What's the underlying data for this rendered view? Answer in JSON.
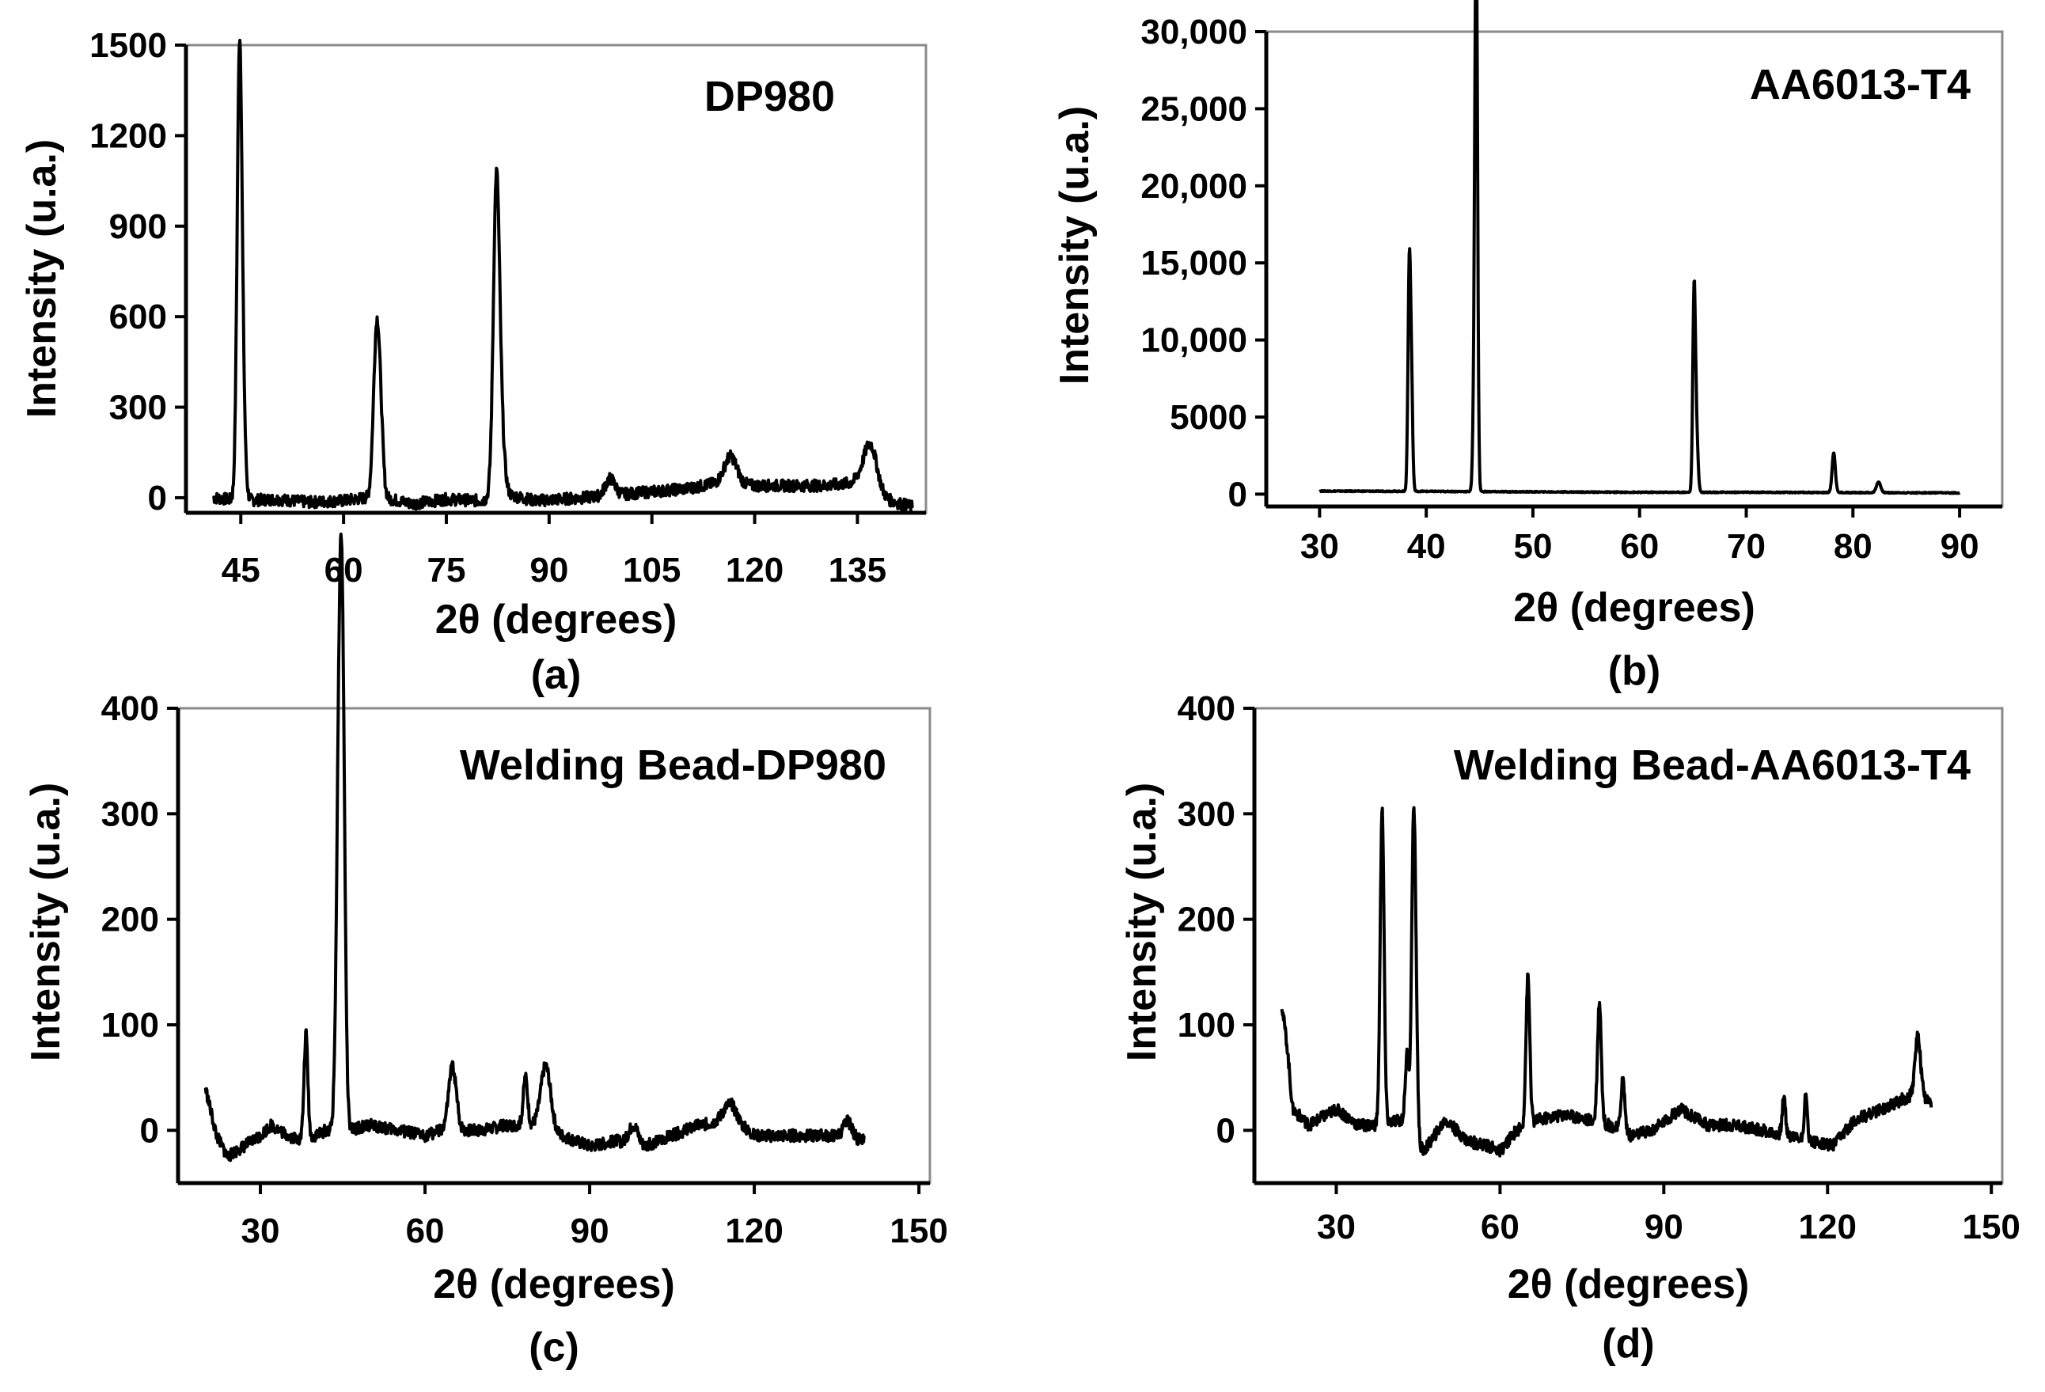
{
  "chart_data": [
    {
      "type": "line",
      "title": "DP980",
      "xlabel": "2θ (degrees)",
      "ylabel": "Intensity (u.a.)",
      "panel_label": "(a)",
      "xlim": [
        37,
        145
      ],
      "ylim": [
        -50,
        1500
      ],
      "xticks": [
        45,
        60,
        75,
        90,
        105,
        120,
        135
      ],
      "xtick_labels": [
        "45",
        "60",
        "75",
        "90",
        "105",
        "120",
        "135"
      ],
      "yticks": [
        0,
        300,
        600,
        900,
        1200,
        1500
      ],
      "ytick_labels": [
        "0",
        "300",
        "600",
        "900",
        "1200",
        "1500"
      ],
      "baseline": [
        [
          41,
          0
        ],
        [
          45,
          -10
        ],
        [
          50,
          -5
        ],
        [
          55,
          -15
        ],
        [
          60,
          -10
        ],
        [
          65,
          5
        ],
        [
          70,
          -20
        ],
        [
          75,
          -5
        ],
        [
          80,
          -10
        ],
        [
          84,
          10
        ],
        [
          88,
          -10
        ],
        [
          95,
          0
        ],
        [
          100,
          10
        ],
        [
          105,
          20
        ],
        [
          110,
          30
        ],
        [
          115,
          50
        ],
        [
          120,
          40
        ],
        [
          125,
          40
        ],
        [
          130,
          40
        ],
        [
          135,
          50
        ],
        [
          138,
          0
        ],
        [
          143,
          -30
        ]
      ],
      "peaks": [
        {
          "x": 44.8,
          "y": 1340,
          "w": 0.35
        },
        {
          "x": 45.2,
          "y": 310,
          "w": 0.4
        },
        {
          "x": 64.8,
          "y": 520,
          "w": 0.45
        },
        {
          "x": 65.4,
          "y": 180,
          "w": 0.4
        },
        {
          "x": 82.3,
          "y": 1010,
          "w": 0.45
        },
        {
          "x": 83.0,
          "y": 180,
          "w": 0.5
        },
        {
          "x": 98.9,
          "y": 55,
          "w": 0.7
        },
        {
          "x": 116.5,
          "y": 90,
          "w": 0.9
        },
        {
          "x": 136.9,
          "y": 160,
          "w": 1.0
        }
      ]
    },
    {
      "type": "line",
      "title": "AA6013-T4",
      "xlabel": "2θ (degrees)",
      "ylabel": "Intensity (u.a.)",
      "panel_label": "(b)",
      "xlim": [
        25,
        94
      ],
      "ylim": [
        -800,
        30000
      ],
      "xticks": [
        30,
        40,
        50,
        60,
        70,
        80,
        90
      ],
      "xtick_labels": [
        "30",
        "40",
        "50",
        "60",
        "70",
        "80",
        "90"
      ],
      "yticks": [
        0,
        5000,
        10000,
        15000,
        20000,
        25000,
        30000
      ],
      "ytick_labels": [
        "0",
        "5000",
        "10,000",
        "15,000",
        "20,000",
        "25,000",
        "30,000"
      ],
      "baseline": [
        [
          30,
          200
        ],
        [
          40,
          180
        ],
        [
          50,
          150
        ],
        [
          60,
          120
        ],
        [
          70,
          120
        ],
        [
          80,
          100
        ],
        [
          90,
          80
        ]
      ],
      "peaks": [
        {
          "x": 38.4,
          "y": 13600,
          "w": 0.12
        },
        {
          "x": 38.6,
          "y": 7000,
          "w": 0.12
        },
        {
          "x": 44.7,
          "y": 25800,
          "w": 0.12
        },
        {
          "x": 44.6,
          "y": 13800,
          "w": 0.15
        },
        {
          "x": 65.1,
          "y": 11800,
          "w": 0.12
        },
        {
          "x": 65.3,
          "y": 4500,
          "w": 0.15
        },
        {
          "x": 78.2,
          "y": 2600,
          "w": 0.15
        },
        {
          "x": 82.4,
          "y": 700,
          "w": 0.2
        }
      ]
    },
    {
      "type": "line",
      "title": "Welding Bead-DP980",
      "xlabel": "2θ (degrees)",
      "ylabel": "Intensity (u.a.)",
      "panel_label": "(c)",
      "xlim": [
        15,
        152
      ],
      "ylim": [
        -50,
        400
      ],
      "xticks": [
        30,
        60,
        90,
        120,
        150
      ],
      "xtick_labels": [
        "30",
        "60",
        "90",
        "120",
        "150"
      ],
      "yticks": [
        0,
        100,
        200,
        300,
        400
      ],
      "ytick_labels": [
        "0",
        "100",
        "200",
        "300",
        "400"
      ],
      "baseline": [
        [
          20,
          40
        ],
        [
          22,
          -5
        ],
        [
          24,
          -25
        ],
        [
          27,
          -15
        ],
        [
          30,
          -5
        ],
        [
          32,
          5
        ],
        [
          35,
          -5
        ],
        [
          38,
          -10
        ],
        [
          42,
          0
        ],
        [
          46,
          0
        ],
        [
          50,
          5
        ],
        [
          55,
          0
        ],
        [
          60,
          -5
        ],
        [
          63,
          0
        ],
        [
          67,
          0
        ],
        [
          70,
          0
        ],
        [
          75,
          5
        ],
        [
          80,
          5
        ],
        [
          85,
          -5
        ],
        [
          90,
          -15
        ],
        [
          95,
          -10
        ],
        [
          100,
          -15
        ],
        [
          105,
          -5
        ],
        [
          110,
          5
        ],
        [
          116,
          10
        ],
        [
          120,
          -5
        ],
        [
          125,
          -5
        ],
        [
          130,
          -5
        ],
        [
          135,
          -5
        ],
        [
          140,
          -10
        ]
      ],
      "peaks": [
        {
          "x": 38.3,
          "y": 100,
          "w": 0.35
        },
        {
          "x": 44.4,
          "y": 370,
          "w": 0.5
        },
        {
          "x": 45.0,
          "y": 320,
          "w": 0.45
        },
        {
          "x": 65.0,
          "y": 60,
          "w": 0.7
        },
        {
          "x": 78.3,
          "y": 45,
          "w": 0.4
        },
        {
          "x": 82.0,
          "y": 60,
          "w": 0.9
        },
        {
          "x": 98.0,
          "y": 18,
          "w": 0.8
        },
        {
          "x": 115.5,
          "y": 15,
          "w": 1.2
        },
        {
          "x": 137.0,
          "y": 15,
          "w": 0.8
        }
      ]
    },
    {
      "type": "line",
      "title": "Welding Bead-AA6013-T4",
      "xlabel": "2θ (degrees)",
      "ylabel": "Intensity (u.a.)",
      "panel_label": "(d)",
      "xlim": [
        15,
        152
      ],
      "ylim": [
        -50,
        400
      ],
      "xticks": [
        30,
        60,
        90,
        120,
        150
      ],
      "xtick_labels": [
        "30",
        "60",
        "90",
        "120",
        "150"
      ],
      "yticks": [
        0,
        100,
        200,
        300,
        400
      ],
      "ytick_labels": [
        "0",
        "100",
        "200",
        "300",
        "400"
      ],
      "baseline": [
        [
          20,
          120
        ],
        [
          21,
          80
        ],
        [
          22,
          20
        ],
        [
          25,
          5
        ],
        [
          30,
          20
        ],
        [
          34,
          5
        ],
        [
          37,
          5
        ],
        [
          42,
          10
        ],
        [
          46,
          -20
        ],
        [
          50,
          10
        ],
        [
          54,
          -10
        ],
        [
          58,
          -15
        ],
        [
          60,
          -20
        ],
        [
          63,
          0
        ],
        [
          67,
          10
        ],
        [
          72,
          15
        ],
        [
          76,
          10
        ],
        [
          80,
          5
        ],
        [
          84,
          -5
        ],
        [
          88,
          0
        ],
        [
          93,
          20
        ],
        [
          98,
          5
        ],
        [
          103,
          5
        ],
        [
          108,
          0
        ],
        [
          113,
          -5
        ],
        [
          117,
          -10
        ],
        [
          121,
          -15
        ],
        [
          125,
          10
        ],
        [
          130,
          20
        ],
        [
          134,
          30
        ],
        [
          137,
          35
        ],
        [
          139,
          25
        ]
      ],
      "peaks": [
        {
          "x": 38.4,
          "y": 300,
          "w": 0.35
        },
        {
          "x": 43.0,
          "y": 70,
          "w": 0.35
        },
        {
          "x": 44.4,
          "y": 215,
          "w": 0.35
        },
        {
          "x": 44.0,
          "y": 160,
          "w": 0.3
        },
        {
          "x": 65.1,
          "y": 140,
          "w": 0.35
        },
        {
          "x": 78.2,
          "y": 115,
          "w": 0.35
        },
        {
          "x": 82.5,
          "y": 50,
          "w": 0.35
        },
        {
          "x": 112.0,
          "y": 35,
          "w": 0.3
        },
        {
          "x": 116.0,
          "y": 40,
          "w": 0.3
        },
        {
          "x": 136.5,
          "y": 55,
          "w": 0.5
        }
      ]
    }
  ]
}
